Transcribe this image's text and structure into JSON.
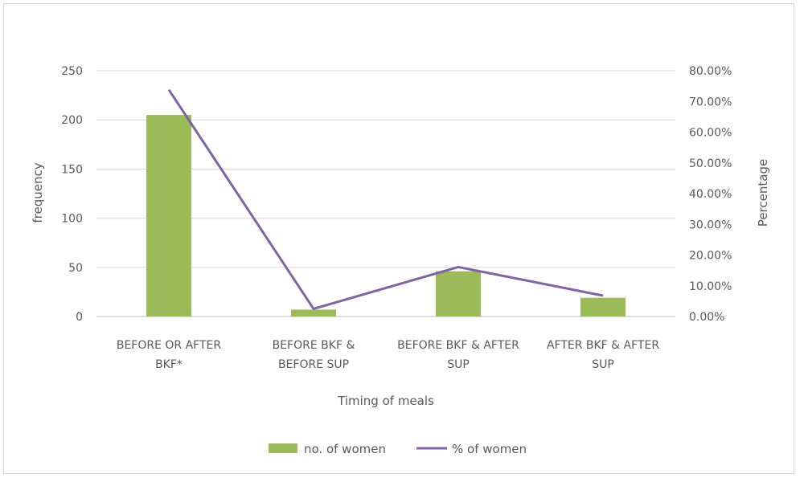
{
  "chart_data": {
    "type": "bar",
    "categories": [
      [
        "BEFORE OR AFTER",
        "BKF*"
      ],
      [
        "BEFORE BKF &",
        "BEFORE SUP"
      ],
      [
        "BEFORE BKF & AFTER",
        "SUP"
      ],
      [
        "AFTER BKF & AFTER",
        "SUP"
      ]
    ],
    "series": [
      {
        "name": "no. of women",
        "kind": "bar",
        "axis": "left",
        "color": "#9bbb59",
        "values": [
          205,
          7,
          46,
          19
        ]
      },
      {
        "name": "% of women",
        "kind": "line",
        "axis": "right",
        "color": "#8064a2",
        "values": [
          73.8,
          2.5,
          16.1,
          6.8
        ]
      }
    ],
    "xlabel": "Timing of meals",
    "ylabel": "frequency",
    "y2label": "Percentage",
    "ylim": [
      0,
      250
    ],
    "yticks": [
      "0",
      "50",
      "100",
      "150",
      "200",
      "250"
    ],
    "y2lim": [
      0,
      80
    ],
    "y2ticks": [
      "0.00%",
      "10.00%",
      "20.00%",
      "30.00%",
      "40.00%",
      "50.00%",
      "60.00%",
      "70.00%",
      "80.00%"
    ],
    "grid": true,
    "legend": "bottom"
  }
}
